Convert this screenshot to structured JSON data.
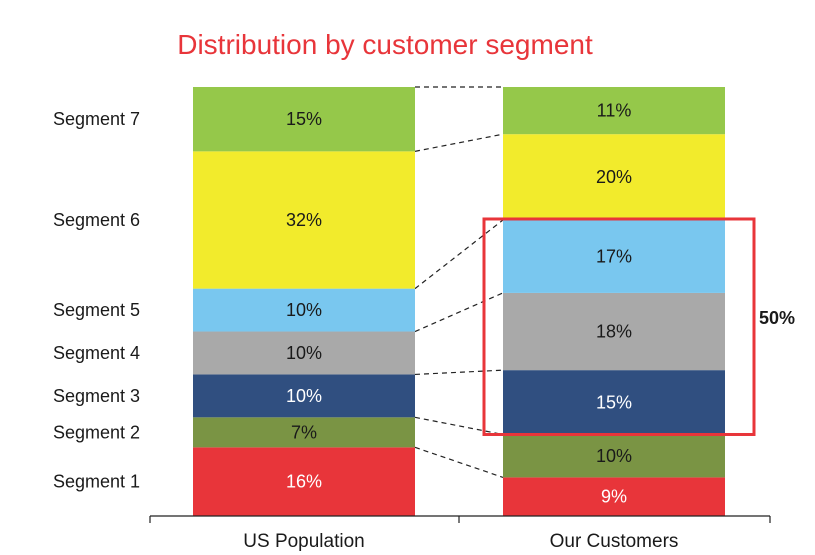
{
  "chart_data": {
    "type": "bar",
    "stacked": true,
    "normalized": true,
    "title": "Distribution by customer segment",
    "xlabel": "",
    "ylabel": "",
    "ylim": [
      0,
      100
    ],
    "categories": [
      "US Population",
      "Our Customers"
    ],
    "series": [
      {
        "name": "Segment 1",
        "values": [
          16,
          9
        ],
        "color": "#e8353a"
      },
      {
        "name": "Segment 2",
        "values": [
          7,
          10
        ],
        "color": "#7a9444"
      },
      {
        "name": "Segment 3",
        "values": [
          10,
          15
        ],
        "color": "#304f80"
      },
      {
        "name": "Segment 4",
        "values": [
          10,
          18
        ],
        "color": "#a9a9a9"
      },
      {
        "name": "Segment 5",
        "values": [
          10,
          17
        ],
        "color": "#79c7ef"
      },
      {
        "name": "Segment 6",
        "values": [
          32,
          20
        ],
        "color": "#f2eb2c"
      },
      {
        "name": "Segment 7",
        "values": [
          15,
          11
        ],
        "color": "#95c84a"
      }
    ],
    "data_labels": [
      [
        "16%",
        "9%"
      ],
      [
        "7%",
        "10%"
      ],
      [
        "10%",
        "15%"
      ],
      [
        "10%",
        "18%"
      ],
      [
        "10%",
        "17%"
      ],
      [
        "32%",
        "20%"
      ],
      [
        "15%",
        "11%"
      ]
    ],
    "annotation": {
      "text": "50%",
      "target_category": "Our Customers",
      "segments": [
        "Segment 3",
        "Segment 4",
        "Segment 5"
      ],
      "color": "#e8353a"
    },
    "title_color": "#e8353a",
    "light_label_series": [
      "Segment 1",
      "Segment 3"
    ]
  }
}
